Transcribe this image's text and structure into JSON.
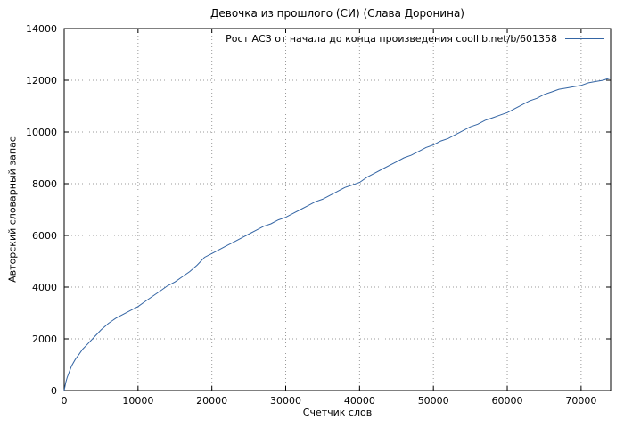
{
  "chart_data": {
    "type": "line",
    "title": "Девочка из прошлого (СИ) (Слава Доронина)",
    "xlabel": "Счетчик слов",
    "ylabel": "Авторский словарный запас",
    "xlim": [
      0,
      74000
    ],
    "ylim": [
      0,
      14000
    ],
    "xticks": [
      0,
      10000,
      20000,
      30000,
      40000,
      50000,
      60000,
      70000
    ],
    "yticks": [
      0,
      2000,
      4000,
      6000,
      8000,
      10000,
      12000,
      14000
    ],
    "grid": true,
    "legend_position": "top-right",
    "line_color": "#3465a4",
    "grid_color": "#9a9a9a",
    "border_color": "#000000",
    "series": [
      {
        "name": "Рост АСЗ от начала до конца произведения coollib.net/b/601358",
        "x": [
          0,
          200,
          400,
          600,
          800,
          1000,
          1500,
          2000,
          2500,
          3000,
          4000,
          5000,
          6000,
          7000,
          8000,
          9000,
          10000,
          11000,
          12000,
          13000,
          14000,
          15000,
          16000,
          17000,
          18000,
          19000,
          20000,
          21000,
          22000,
          23000,
          24000,
          25000,
          26000,
          27000,
          28000,
          29000,
          30000,
          31000,
          32000,
          33000,
          34000,
          35000,
          36000,
          37000,
          38000,
          39000,
          40000,
          41000,
          42000,
          43000,
          44000,
          45000,
          46000,
          47000,
          48000,
          49000,
          50000,
          51000,
          52000,
          53000,
          54000,
          55000,
          56000,
          57000,
          58000,
          59000,
          60000,
          61000,
          62000,
          63000,
          64000,
          65000,
          66000,
          67000,
          68000,
          69000,
          70000,
          71000,
          72000,
          73000,
          74000
        ],
        "y": [
          0,
          300,
          500,
          650,
          800,
          950,
          1200,
          1400,
          1600,
          1750,
          2050,
          2350,
          2600,
          2800,
          2950,
          3100,
          3250,
          3450,
          3650,
          3850,
          4050,
          4200,
          4400,
          4600,
          4850,
          5150,
          5300,
          5450,
          5600,
          5750,
          5900,
          6050,
          6200,
          6350,
          6450,
          6600,
          6700,
          6850,
          7000,
          7150,
          7300,
          7400,
          7550,
          7700,
          7850,
          7950,
          8050,
          8250,
          8400,
          8550,
          8700,
          8850,
          9000,
          9100,
          9250,
          9400,
          9500,
          9650,
          9750,
          9900,
          10050,
          10200,
          10300,
          10450,
          10550,
          10650,
          10750,
          10900,
          11050,
          11200,
          11300,
          11450,
          11550,
          11650,
          11700,
          11750,
          11800,
          11900,
          11950,
          12000,
          12100
        ]
      }
    ]
  }
}
